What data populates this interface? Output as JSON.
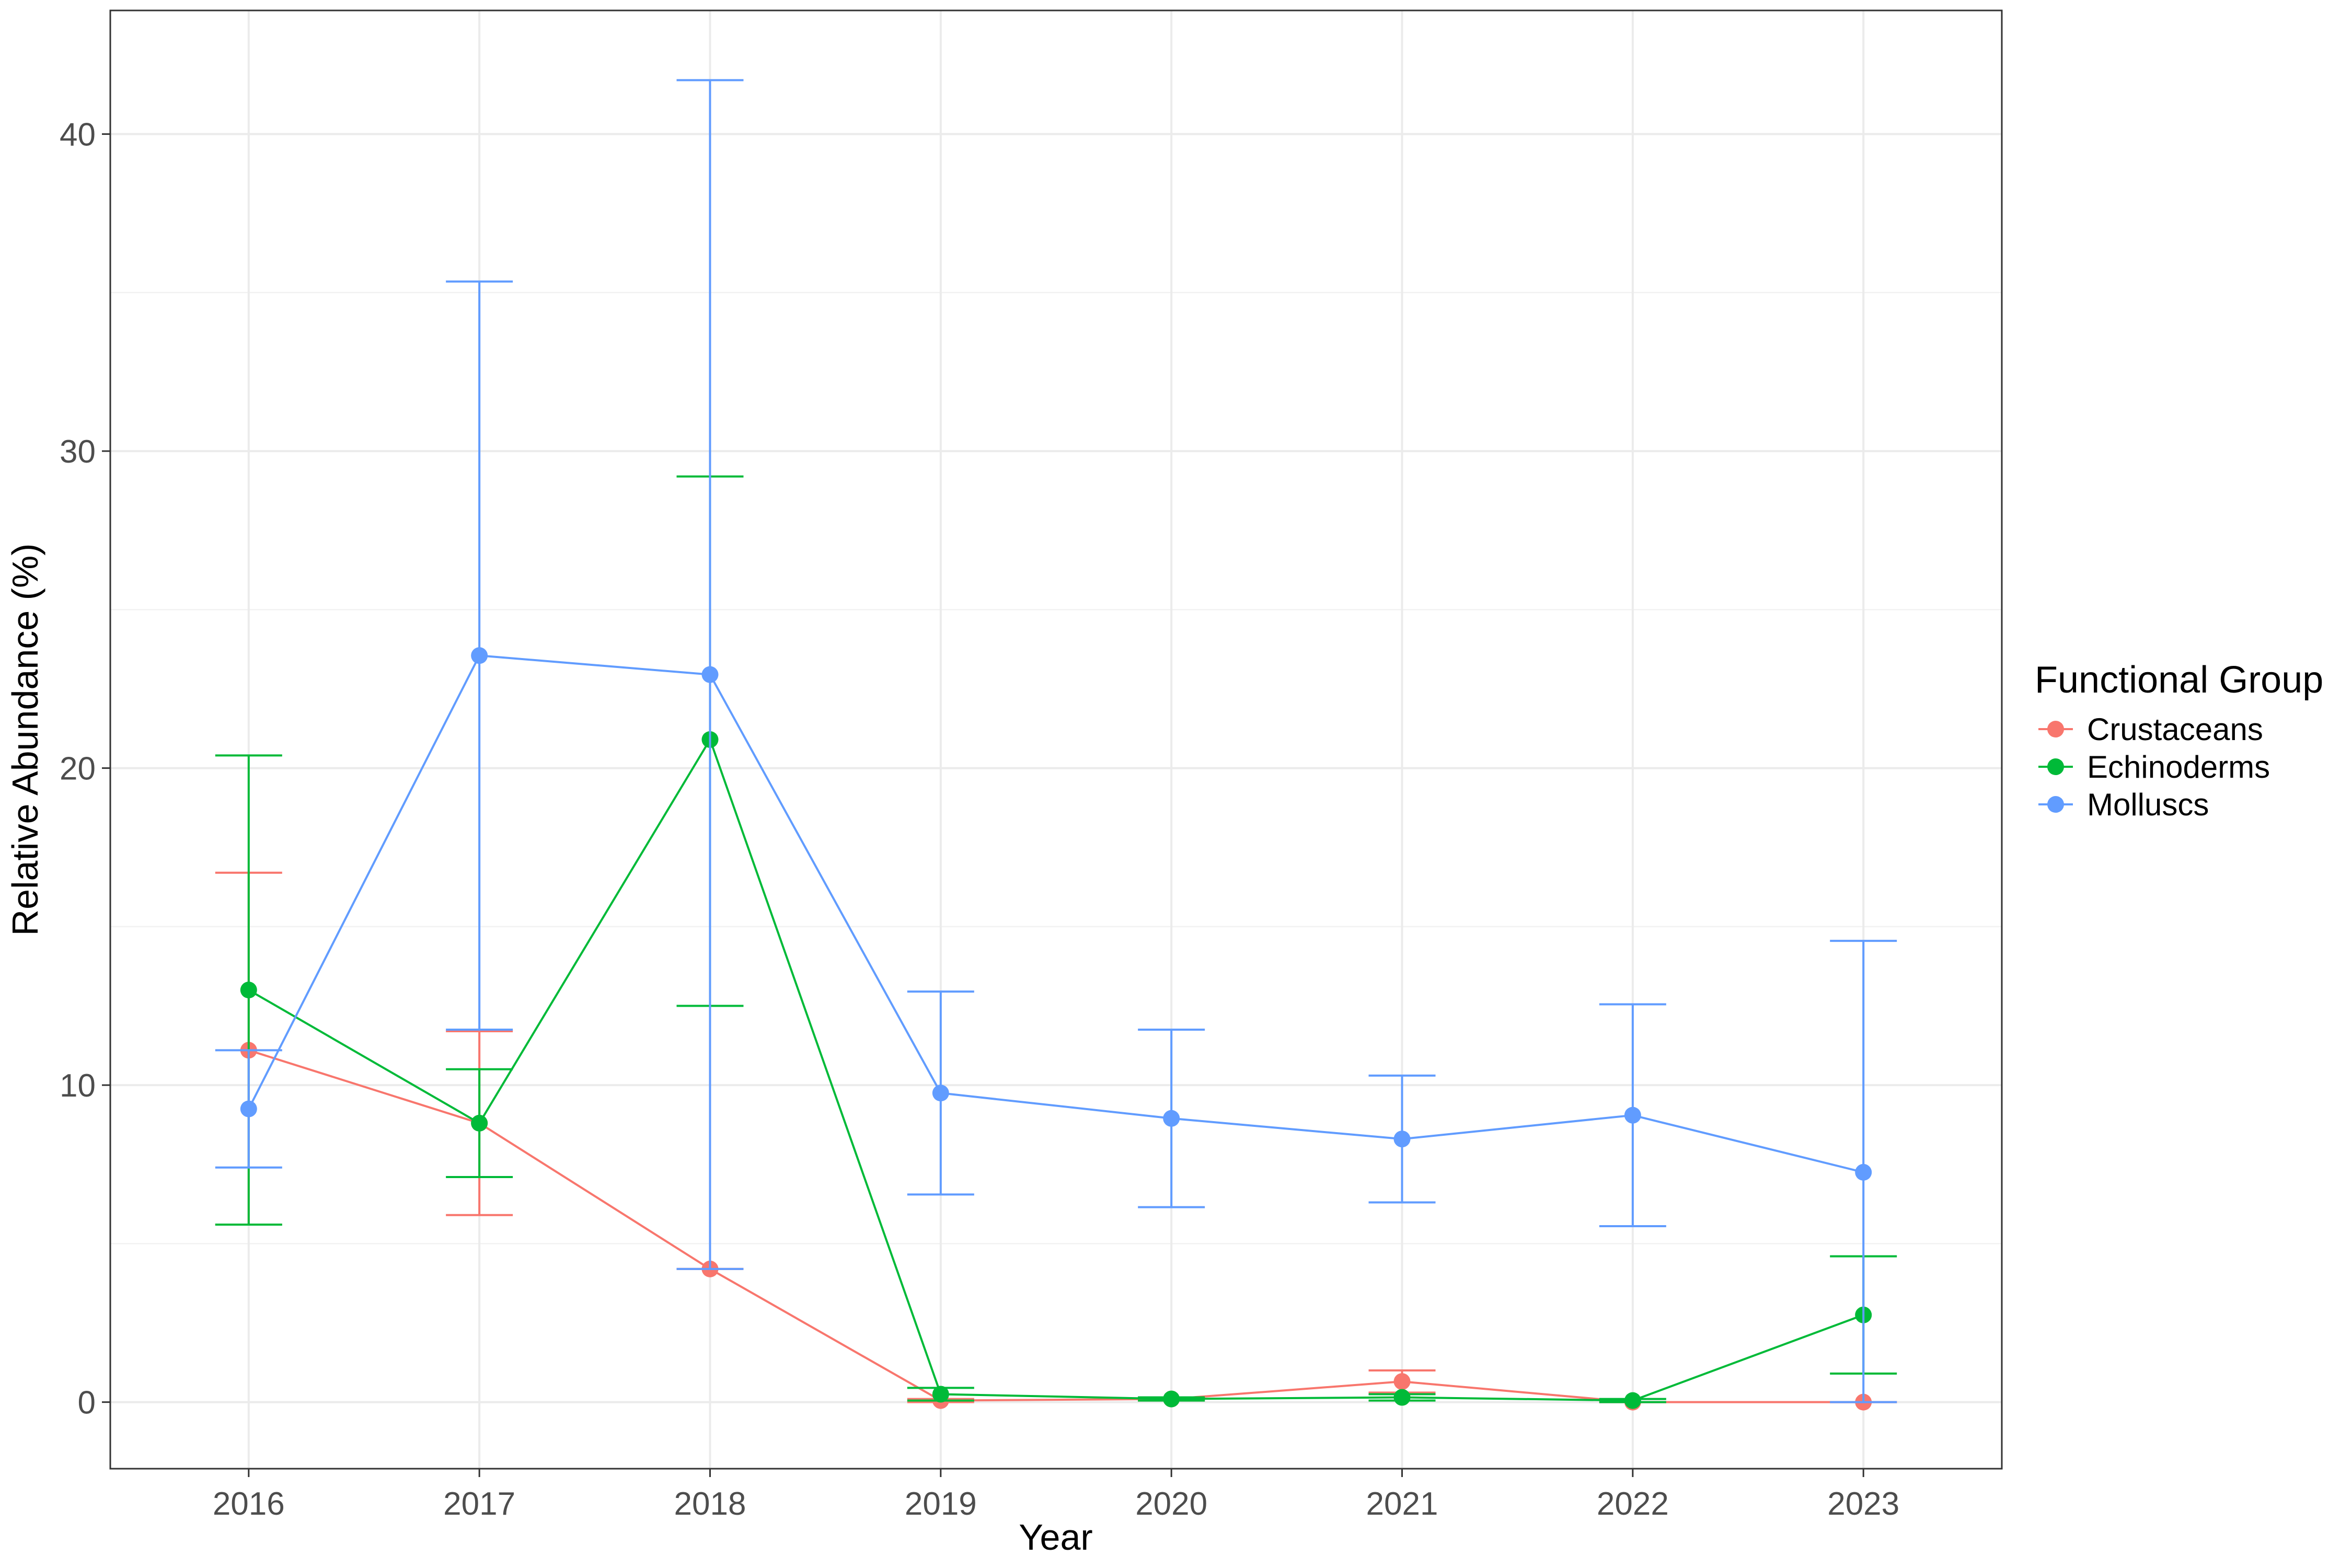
{
  "chart_data": {
    "type": "line",
    "title": "",
    "xlabel": "Year",
    "ylabel": "Relative Abundance (%)",
    "x": [
      2016,
      2017,
      2018,
      2019,
      2020,
      2021,
      2022,
      2023
    ],
    "x_tick_labels": [
      "2016",
      "2017",
      "2018",
      "2019",
      "2020",
      "2021",
      "2022",
      "2023"
    ],
    "xlim": [
      2015.4,
      2023.6
    ],
    "ylim": [
      -2.1,
      43.9
    ],
    "y_ticks": [
      0,
      10,
      20,
      30,
      40
    ],
    "y_tick_labels": [
      "0",
      "10",
      "20",
      "30",
      "40"
    ],
    "grid": true,
    "legend": {
      "title": "Functional Group",
      "placement": "right"
    },
    "series": [
      {
        "name": "Crustaceans",
        "color": "#F8766D",
        "values": [
          11.1,
          8.8,
          4.2,
          0.05,
          0.1,
          0.65,
          0.0,
          0.0
        ],
        "err_lower": [
          5.6,
          5.9,
          4.2,
          0.0,
          0.05,
          0.3,
          0.0,
          0.0
        ],
        "err_upper": [
          16.7,
          11.7,
          4.2,
          0.1,
          0.15,
          1.0,
          0.0,
          0.0
        ]
      },
      {
        "name": "Echinoderms",
        "color": "#00BA38",
        "values": [
          13.0,
          8.8,
          20.9,
          0.25,
          0.1,
          0.15,
          0.05,
          2.75
        ],
        "err_lower": [
          5.6,
          7.1,
          12.5,
          0.05,
          0.05,
          0.05,
          0.0,
          0.9
        ],
        "err_upper": [
          20.4,
          10.5,
          29.2,
          0.45,
          0.15,
          0.25,
          0.1,
          4.6
        ]
      },
      {
        "name": "Molluscs",
        "color": "#619CFF",
        "values": [
          9.25,
          23.55,
          22.95,
          9.75,
          8.95,
          8.3,
          9.05,
          7.25
        ],
        "err_lower": [
          7.4,
          11.75,
          4.2,
          6.55,
          6.15,
          6.3,
          5.55,
          0.0
        ],
        "err_upper": [
          11.1,
          35.35,
          41.7,
          12.95,
          11.75,
          10.3,
          12.55,
          14.55
        ]
      }
    ]
  }
}
